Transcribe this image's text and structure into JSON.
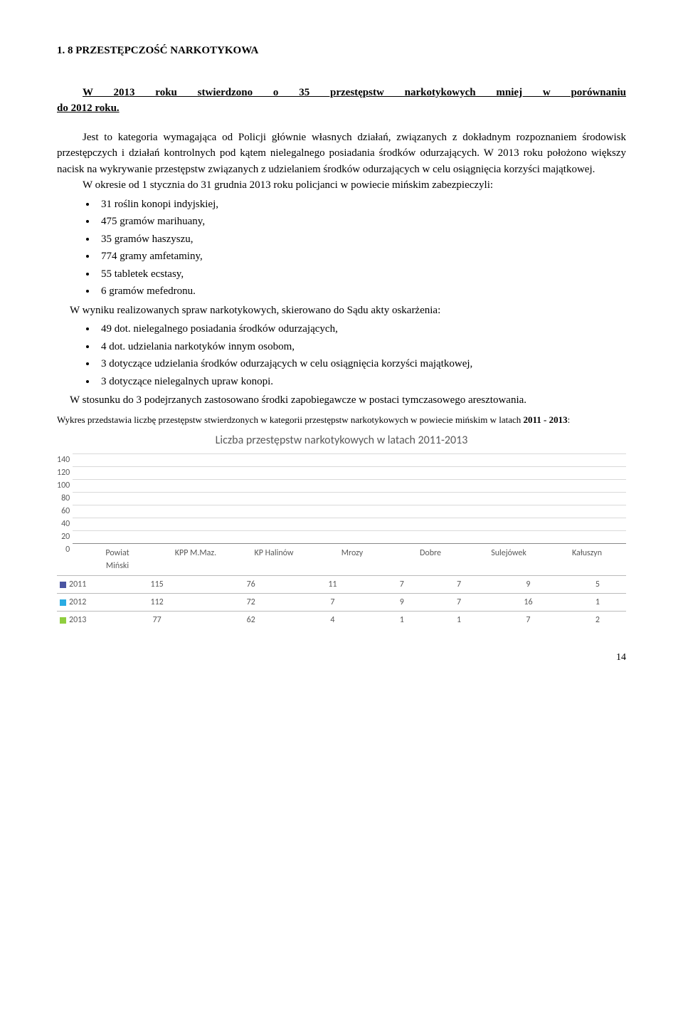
{
  "heading": "1. 8    PRZESTĘPCZOŚĆ NARKOTYKOWA",
  "subheading_l1": "W 2013 roku stwierdzono o 35 przestępstw narkotykowych mniej w porównaniu",
  "subheading_l2": "do 2012 roku.",
  "para1": "Jest to kategoria wymagająca od Policji głównie własnych działań, związanych z dokładnym rozpoznaniem środowisk przestępczych i działań kontrolnych pod kątem nielegalnego posiadania środków odurzających. W 2013 roku położono większy nacisk na wykrywanie przestępstw związanych z udzielaniem środków odurzających w celu osiągnięcia korzyści majątkowej.",
  "para2": "W okresie od 1 stycznia do 31 grudnia 2013 roku policjanci w powiecie mińskim zabezpieczyli:",
  "bullets1": [
    "31 roślin konopi indyjskiej,",
    "475 gramów marihuany,",
    "35 gramów haszyszu,",
    "774 gramy amfetaminy,",
    "55 tabletek ecstasy,",
    "6 gramów mefedronu."
  ],
  "para3": "W wyniku realizowanych spraw narkotykowych, skierowano do Sądu akty oskarżenia:",
  "bullets2": [
    "49 dot. nielegalnego posiadania środków odurzających,",
    "4 dot. udzielania narkotyków innym osobom,",
    "3 dotyczące udzielania środków odurzających w celu osiągnięcia korzyści majątkowej,",
    "3 dotyczące nielegalnych upraw konopi."
  ],
  "para4": "W stosunku do 3 podejrzanych zastosowano środki zapobiegawcze w postaci tymczasowego aresztowania.",
  "caption_prefix": "Wykres przedstawia liczbę przestępstw stwierdzonych w kategorii przestępstw narkotykowych w powiecie mińskim w latach ",
  "caption_bold": "2011 - 2013",
  "caption_suffix": ":",
  "chart": {
    "title": "Liczba przestępstw narkotykowych w latach 2011-2013",
    "y_ticks": [
      "140",
      "120",
      "100",
      "80",
      "60",
      "40",
      "20",
      "0"
    ],
    "y_max": 140,
    "categories_line1": [
      "Powiat",
      "KPP M.Maz.",
      "KP Halinów",
      "Mrozy",
      "Dobre",
      "Sulejówek",
      "Kałuszyn"
    ],
    "categories_line2": [
      "Miński",
      "",
      "",
      "",
      "",
      "",
      ""
    ],
    "series": [
      {
        "name": "2011",
        "color": "#4a55a2",
        "values": [
          115,
          76,
          11,
          7,
          7,
          9,
          5
        ]
      },
      {
        "name": "2012",
        "color": "#2aace3",
        "values": [
          112,
          72,
          7,
          9,
          7,
          16,
          1
        ]
      },
      {
        "name": "2013",
        "color": "#8fce3f",
        "values": [
          77,
          62,
          4,
          1,
          1,
          7,
          2
        ]
      }
    ],
    "grid_color": "#d9d9d9",
    "label_color": "#595959",
    "bg": "#ffffff"
  },
  "page_number": "14"
}
